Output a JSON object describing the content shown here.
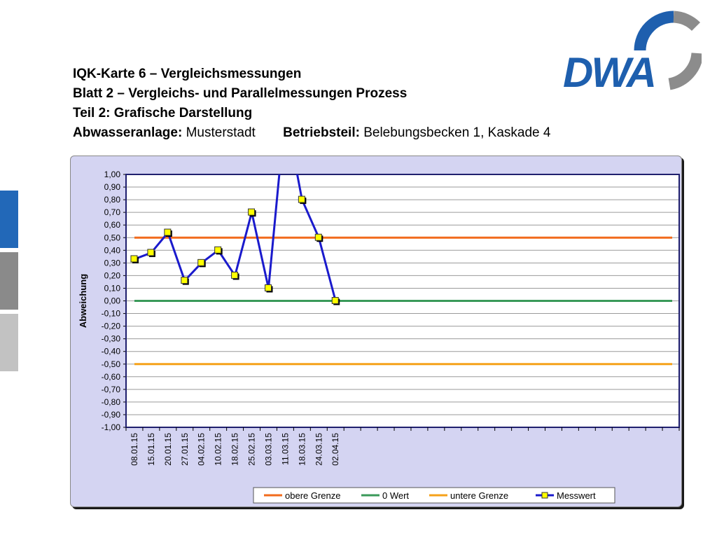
{
  "header": {
    "line1": "IQK-Karte 6 – Vergleichsmessungen",
    "line2": "Blatt 2 – Vergleichs- und Parallelmessungen Prozess",
    "line3": "Teil 2: Grafische Darstellung",
    "plant_label": "Abwasseranlage:",
    "plant_value": "Musterstadt",
    "section_label": "Betriebsteil:",
    "section_value": "Belebungsbecken 1, Kaskade 4"
  },
  "logo": {
    "text": "DWA"
  },
  "colors": {
    "side_tab_1": "#2268b8",
    "side_tab_2": "#8a8a8a",
    "side_tab_3": "#c2c2c2",
    "logo_blue": "#1e5fae",
    "logo_gray": "#8c8c8c",
    "plot_background": "#ffffff",
    "panel_background": "#d4d4f2"
  },
  "chart_data": {
    "type": "line",
    "title": "",
    "xlabel": "",
    "ylabel": "Abweichung",
    "ylim": [
      -1.0,
      1.0
    ],
    "y_ticks": [
      "1,00",
      "0,90",
      "0,80",
      "0,70",
      "0,60",
      "0,50",
      "0,40",
      "0,30",
      "0,20",
      "0,10",
      "0,00",
      "-0,10",
      "-0,20",
      "-0,30",
      "-0,40",
      "-0,50",
      "-0,60",
      "-0,70",
      "-0,80",
      "-0,90",
      "-1,00"
    ],
    "categories": [
      "08.01.15",
      "15.01.15",
      "20.01.15",
      "27.01.15",
      "04.02.15",
      "10.02.15",
      "18.02.15",
      "25.02.15",
      "03.03.15",
      "11.03.15",
      "18.03.15",
      "24.03.15",
      "02.04.15"
    ],
    "grid": true,
    "legend_position": "bottom-right",
    "series": [
      {
        "name": "obere Grenze",
        "type": "line",
        "constant": 0.5,
        "color": "#f26b1d"
      },
      {
        "name": "0 Wert",
        "type": "line",
        "constant": 0.0,
        "color": "#3a9a5a"
      },
      {
        "name": "untere Grenze",
        "type": "line",
        "constant": -0.5,
        "color": "#f5a21a"
      },
      {
        "name": "Messwert",
        "type": "line-marker",
        "color": "#1a1acc",
        "marker_color": "#ffff00",
        "values": [
          0.33,
          0.38,
          0.54,
          0.16,
          0.3,
          0.4,
          0.2,
          0.7,
          0.1,
          1.5,
          0.8,
          0.5,
          0.0
        ]
      }
    ]
  }
}
